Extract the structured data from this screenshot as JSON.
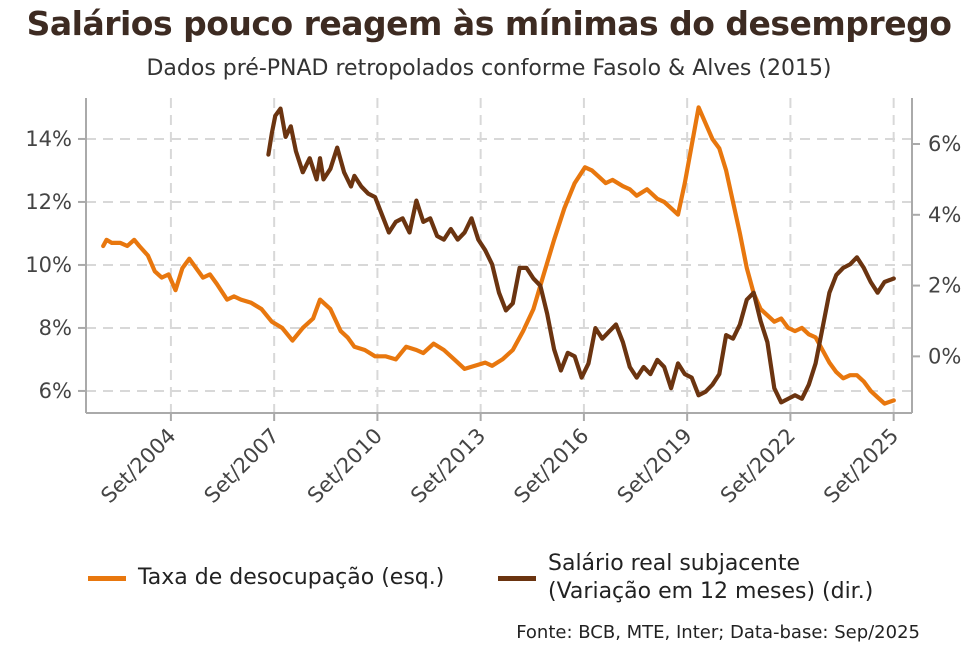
{
  "title": "Salários pouco reagem às mínimas do desemprego",
  "subtitle": "Dados pré-PNAD retropolados conforme Fasolo & Alves (2015)",
  "source": "Fonte: BCB, MTE, Inter; Data-base: Sep/2025",
  "colors": {
    "unemployment": "#E8770E",
    "wages": "#6B3410",
    "grid": "#d8d8d8",
    "axis": "#aaaaaa"
  },
  "legend": {
    "unemployment": "Taxa de desocupação (esq.)",
    "wages_line1": "Salário real subjacente",
    "wages_line2": "(Variação em 12 meses) (dir.)"
  },
  "chart_data": {
    "type": "line",
    "title": "Salários pouco reagem às mínimas do desemprego",
    "subtitle": "Dados pré-PNAD retropolados conforme Fasolo & Alves (2015)",
    "x_ticks": [
      2004.667,
      2007.667,
      2010.667,
      2013.667,
      2016.667,
      2019.667,
      2022.667,
      2025.667
    ],
    "x_tick_labels": [
      "Set/2004",
      "Set/2007",
      "Set/2010",
      "Set/2013",
      "Set/2016",
      "Set/2019",
      "Set/2022",
      "Set/2025"
    ],
    "xlim": [
      2002.2,
      2026.2
    ],
    "y_left": {
      "ylim": [
        5.3,
        15.3
      ],
      "ticks": [
        6,
        8,
        10,
        12,
        14
      ],
      "tick_labels": [
        "6%",
        "8%",
        "10%",
        "12%",
        "14%"
      ]
    },
    "y_right": {
      "ylim": [
        -1.6,
        7.3
      ],
      "ticks": [
        0,
        2,
        4,
        6
      ],
      "tick_labels": [
        "0%",
        "2%",
        "4%",
        "6%"
      ]
    },
    "legend_position": "bottom",
    "series": [
      {
        "name": "Taxa de desocupação (esq.)",
        "axis": "left",
        "x": [
          2002.7,
          2002.8,
          2002.95,
          2003.2,
          2003.4,
          2003.6,
          2003.75,
          2004.0,
          2004.2,
          2004.4,
          2004.6,
          2004.8,
          2005.0,
          2005.2,
          2005.4,
          2005.6,
          2005.8,
          2006.0,
          2006.3,
          2006.5,
          2006.7,
          2007.0,
          2007.3,
          2007.6,
          2007.9,
          2008.2,
          2008.5,
          2008.8,
          2009.0,
          2009.3,
          2009.6,
          2009.8,
          2010.0,
          2010.3,
          2010.6,
          2010.9,
          2011.2,
          2011.5,
          2011.8,
          2012.0,
          2012.3,
          2012.6,
          2012.9,
          2013.2,
          2013.5,
          2013.8,
          2014.0,
          2014.3,
          2014.6,
          2014.9,
          2015.2,
          2015.5,
          2015.8,
          2016.1,
          2016.4,
          2016.7,
          2016.9,
          2017.1,
          2017.3,
          2017.5,
          2017.8,
          2018.0,
          2018.2,
          2018.5,
          2018.8,
          2019.0,
          2019.2,
          2019.4,
          2019.6,
          2019.8,
          2020.0,
          2020.2,
          2020.4,
          2020.6,
          2020.8,
          2021.0,
          2021.2,
          2021.4,
          2021.6,
          2021.8,
          2022.0,
          2022.2,
          2022.4,
          2022.6,
          2022.8,
          2023.0,
          2023.2,
          2023.4,
          2023.6,
          2023.8,
          2024.0,
          2024.2,
          2024.4,
          2024.6,
          2024.8,
          2025.0,
          2025.2,
          2025.4,
          2025.67
        ],
        "values": [
          10.6,
          10.8,
          10.7,
          10.7,
          10.6,
          10.8,
          10.6,
          10.3,
          9.8,
          9.6,
          9.7,
          9.2,
          9.9,
          10.2,
          9.9,
          9.6,
          9.7,
          9.4,
          8.9,
          9.0,
          8.9,
          8.8,
          8.6,
          8.2,
          8.0,
          7.6,
          8.0,
          8.3,
          8.9,
          8.6,
          7.9,
          7.7,
          7.4,
          7.3,
          7.1,
          7.1,
          7.0,
          7.4,
          7.3,
          7.2,
          7.5,
          7.3,
          7.0,
          6.7,
          6.8,
          6.9,
          6.8,
          7.0,
          7.3,
          7.9,
          8.6,
          9.7,
          10.8,
          11.8,
          12.6,
          13.1,
          13.0,
          12.8,
          12.6,
          12.7,
          12.5,
          12.4,
          12.2,
          12.4,
          12.1,
          12.0,
          11.8,
          11.6,
          12.6,
          13.8,
          15.0,
          14.5,
          14.0,
          13.7,
          13.0,
          12.0,
          11.0,
          9.9,
          9.1,
          8.6,
          8.4,
          8.2,
          8.3,
          8.0,
          7.9,
          8.0,
          7.8,
          7.7,
          7.3,
          6.9,
          6.6,
          6.4,
          6.5,
          6.5,
          6.3,
          6.0,
          5.8,
          5.6,
          5.7
        ]
      },
      {
        "name": "Salário real subjacente (Variação em 12 meses) (dir.)",
        "axis": "right",
        "x": [
          2007.5,
          2007.6,
          2007.7,
          2007.85,
          2008.0,
          2008.15,
          2008.3,
          2008.5,
          2008.7,
          2008.9,
          2009.0,
          2009.1,
          2009.3,
          2009.5,
          2009.7,
          2009.9,
          2010.0,
          2010.2,
          2010.4,
          2010.6,
          2010.8,
          2011.0,
          2011.2,
          2011.4,
          2011.6,
          2011.8,
          2012.0,
          2012.2,
          2012.4,
          2012.6,
          2012.8,
          2013.0,
          2013.2,
          2013.4,
          2013.6,
          2013.8,
          2014.0,
          2014.2,
          2014.4,
          2014.6,
          2014.8,
          2015.0,
          2015.2,
          2015.4,
          2015.6,
          2015.8,
          2016.0,
          2016.2,
          2016.4,
          2016.6,
          2016.8,
          2017.0,
          2017.2,
          2017.4,
          2017.6,
          2017.8,
          2018.0,
          2018.2,
          2018.4,
          2018.6,
          2018.8,
          2019.0,
          2019.2,
          2019.4,
          2019.6,
          2019.8,
          2020.0,
          2020.2,
          2020.4,
          2020.6,
          2020.8,
          2021.0,
          2021.2,
          2021.4,
          2021.6,
          2021.8,
          2022.0,
          2022.2,
          2022.4,
          2022.6,
          2022.8,
          2023.0,
          2023.2,
          2023.4,
          2023.6,
          2023.8,
          2024.0,
          2024.2,
          2024.4,
          2024.6,
          2024.8,
          2025.0,
          2025.2,
          2025.4,
          2025.67
        ],
        "values": [
          5.7,
          6.3,
          6.8,
          7.0,
          6.2,
          6.5,
          5.8,
          5.2,
          5.6,
          5.0,
          5.6,
          5.0,
          5.3,
          5.9,
          5.2,
          4.8,
          5.1,
          4.8,
          4.6,
          4.5,
          4.0,
          3.5,
          3.8,
          3.9,
          3.5,
          4.4,
          3.8,
          3.9,
          3.4,
          3.3,
          3.6,
          3.3,
          3.5,
          3.9,
          3.3,
          3.0,
          2.6,
          1.8,
          1.3,
          1.5,
          2.5,
          2.5,
          2.2,
          2.0,
          1.2,
          0.2,
          -0.4,
          0.1,
          0.0,
          -0.6,
          -0.2,
          0.8,
          0.5,
          0.7,
          0.9,
          0.4,
          -0.3,
          -0.6,
          -0.3,
          -0.5,
          -0.1,
          -0.3,
          -0.9,
          -0.2,
          -0.5,
          -0.6,
          -1.1,
          -1.0,
          -0.8,
          -0.5,
          0.6,
          0.5,
          0.9,
          1.6,
          1.8,
          1.0,
          0.4,
          -0.9,
          -1.3,
          -1.2,
          -1.1,
          -1.2,
          -0.8,
          -0.2,
          0.8,
          1.8,
          2.3,
          2.5,
          2.6,
          2.8,
          2.5,
          2.1,
          1.8,
          2.1,
          2.2
        ]
      }
    ]
  }
}
